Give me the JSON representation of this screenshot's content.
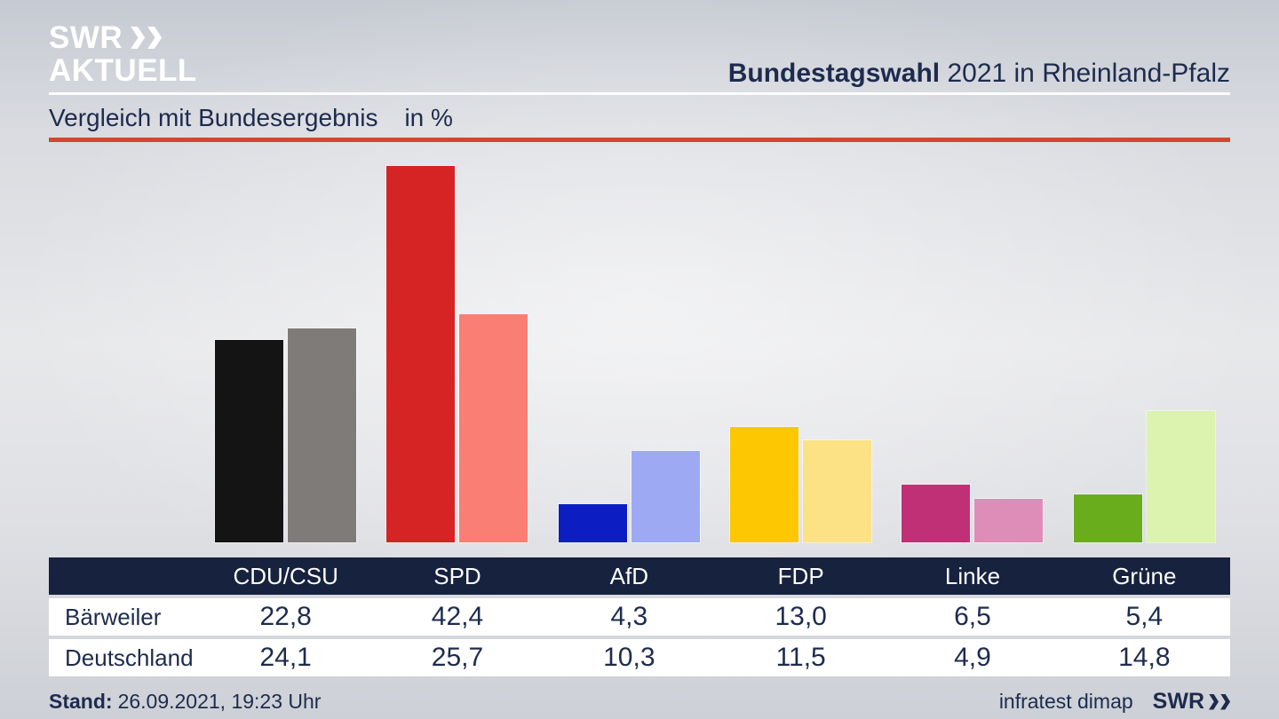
{
  "header": {
    "logo_line1": "SWR",
    "logo_line2": "AKTUELL",
    "title_bold": "Bundestagswahl",
    "title_rest": " 2021 in Rheinland-Pfalz"
  },
  "subtitle": {
    "text": "Vergleich mit Bundesergebnis",
    "unit": "in %"
  },
  "chart_data": {
    "type": "bar",
    "title": "Vergleich mit Bundesergebnis in %",
    "categories": [
      "CDU/CSU",
      "SPD",
      "AfD",
      "FDP",
      "Linke",
      "Grüne"
    ],
    "series": [
      {
        "name": "Bärweiler",
        "values": [
          22.8,
          42.4,
          4.3,
          13.0,
          6.5,
          5.4
        ],
        "colors": [
          "#141414",
          "#d52423",
          "#0c1ec2",
          "#fdc701",
          "#c03077",
          "#69ad1d"
        ]
      },
      {
        "name": "Deutschland",
        "values": [
          24.1,
          25.7,
          10.3,
          11.5,
          4.9,
          14.8
        ],
        "colors": [
          "#7e7b79",
          "#fb7e74",
          "#9daaf3",
          "#fce285",
          "#de8cb8",
          "#dcf2af"
        ]
      }
    ],
    "ylim": [
      0,
      45.1
    ],
    "grid": false,
    "legend_position": "table-below",
    "value_format": "decimal-comma"
  },
  "table": {
    "columns": [
      "CDU/CSU",
      "SPD",
      "AfD",
      "FDP",
      "Linke",
      "Grüne"
    ],
    "rows": [
      {
        "label": "Bärweiler",
        "values": [
          "22,8",
          "42,4",
          "4,3",
          "13,0",
          "6,5",
          "5,4"
        ]
      },
      {
        "label": "Deutschland",
        "values": [
          "24,1",
          "25,7",
          "10,3",
          "11,5",
          "4,9",
          "14,8"
        ]
      }
    ]
  },
  "footer": {
    "stand_label": "Stand:",
    "stand_value": "26.09.2021, 19:23 Uhr",
    "source": "infratest dimap",
    "brand": "SWR"
  },
  "colors": {
    "navy_text": "#1d2b4e",
    "table_header_bg": "#16223e",
    "red_rule": "#cb4a31",
    "white_rule": "#ffffff"
  }
}
